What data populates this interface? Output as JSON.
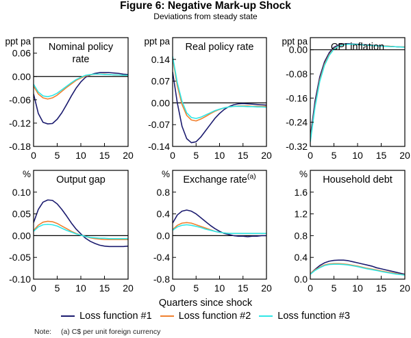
{
  "figure": {
    "title": "Figure 6: Negative Mark-up Shock",
    "subtitle": "Deviations from steady state",
    "xlabel": "Quarters since shock",
    "note_label": "Note:",
    "note_text": "(a) C$ per unit foreign currency"
  },
  "legend": [
    {
      "name": "Loss function #1",
      "color": "#1a1a6e"
    },
    {
      "name": "Loss function #2",
      "color": "#f07f2d"
    },
    {
      "name": "Loss function #3",
      "color": "#2ee6e6"
    }
  ],
  "chart_data": [
    {
      "type": "line",
      "title": "Nominal policy rate",
      "title_lines": [
        "Nominal policy",
        "rate"
      ],
      "unit": "ppt pa",
      "xlabel": "Quarters since shock",
      "xlim": [
        0,
        20
      ],
      "ylim": [
        -0.18,
        0.1
      ],
      "xticks": [
        0,
        5,
        10,
        15,
        20
      ],
      "yticks": [
        -0.18,
        -0.12,
        -0.06,
        0.0,
        0.06
      ],
      "ytick_labels": [
        "-0.18",
        "-0.12",
        "-0.06",
        "0.00",
        "0.06"
      ],
      "x": [
        0,
        1,
        2,
        3,
        4,
        5,
        6,
        7,
        8,
        9,
        10,
        11,
        12,
        13,
        14,
        15,
        16,
        17,
        18,
        19,
        20
      ],
      "series": [
        {
          "name": "Loss function #1",
          "values": [
            -0.045,
            -0.095,
            -0.118,
            -0.122,
            -0.121,
            -0.11,
            -0.093,
            -0.072,
            -0.05,
            -0.03,
            -0.014,
            -0.002,
            0.004,
            0.008,
            0.01,
            0.01,
            0.01,
            0.009,
            0.008,
            0.006,
            0.005
          ]
        },
        {
          "name": "Loss function #2",
          "values": [
            -0.025,
            -0.045,
            -0.055,
            -0.058,
            -0.055,
            -0.048,
            -0.038,
            -0.028,
            -0.019,
            -0.01,
            -0.004,
            0.001,
            0.004,
            0.006,
            0.006,
            0.006,
            0.005,
            0.004,
            0.004,
            0.003,
            0.003
          ]
        },
        {
          "name": "Loss function #3",
          "values": [
            -0.02,
            -0.04,
            -0.05,
            -0.052,
            -0.049,
            -0.043,
            -0.034,
            -0.025,
            -0.016,
            -0.008,
            -0.002,
            0.003,
            0.005,
            0.006,
            0.006,
            0.005,
            0.005,
            0.004,
            0.004,
            0.003,
            0.003
          ]
        }
      ]
    },
    {
      "type": "line",
      "title": "Real policy rate",
      "title_lines": [
        "Real policy rate"
      ],
      "unit": "ppt pa",
      "xlabel": "Quarters since shock",
      "xlim": [
        0,
        20
      ],
      "ylim": [
        -0.14,
        0.21
      ],
      "xticks": [
        0,
        5,
        10,
        15,
        20
      ],
      "yticks": [
        -0.14,
        -0.07,
        0.0,
        0.07,
        0.14
      ],
      "ytick_labels": [
        "-0.14",
        "-0.07",
        "0.00",
        "0.07",
        "0.14"
      ],
      "x": [
        0,
        1,
        2,
        3,
        4,
        5,
        6,
        7,
        8,
        9,
        10,
        11,
        12,
        13,
        14,
        15,
        16,
        17,
        18,
        19,
        20
      ],
      "series": [
        {
          "name": "Loss function #1",
          "values": [
            0.1,
            0.0,
            -0.075,
            -0.115,
            -0.128,
            -0.125,
            -0.11,
            -0.09,
            -0.07,
            -0.05,
            -0.034,
            -0.021,
            -0.012,
            -0.006,
            -0.003,
            -0.002,
            -0.003,
            -0.004,
            -0.005,
            -0.006,
            -0.007
          ]
        },
        {
          "name": "Loss function #2",
          "values": [
            0.145,
            0.055,
            -0.005,
            -0.04,
            -0.055,
            -0.058,
            -0.052,
            -0.044,
            -0.035,
            -0.027,
            -0.021,
            -0.016,
            -0.013,
            -0.011,
            -0.01,
            -0.01,
            -0.01,
            -0.011,
            -0.011,
            -0.011,
            -0.011
          ]
        },
        {
          "name": "Loss function #3",
          "values": [
            0.15,
            0.065,
            0.005,
            -0.032,
            -0.047,
            -0.05,
            -0.046,
            -0.039,
            -0.032,
            -0.025,
            -0.02,
            -0.016,
            -0.013,
            -0.011,
            -0.011,
            -0.011,
            -0.012,
            -0.012,
            -0.013,
            -0.013,
            -0.014
          ]
        }
      ]
    },
    {
      "type": "line",
      "title": "CPI inflation",
      "title_lines": [
        "CPI inflation"
      ],
      "unit": "ppt pa",
      "xlabel": "Quarters since shock",
      "xlim": [
        0,
        20
      ],
      "ylim": [
        -0.32,
        0.04
      ],
      "xticks": [
        0,
        5,
        10,
        15,
        20
      ],
      "yticks": [
        -0.32,
        -0.24,
        -0.16,
        -0.08,
        0.0
      ],
      "ytick_labels": [
        "-0.32",
        "-0.24",
        "-0.16",
        "-0.08",
        "0.00"
      ],
      "x": [
        0,
        1,
        2,
        3,
        4,
        5,
        6,
        7,
        8,
        9,
        10,
        11,
        12,
        13,
        14,
        15,
        16,
        17,
        18,
        19,
        20
      ],
      "series": [
        {
          "name": "Loss function #1",
          "values": [
            -0.29,
            -0.17,
            -0.09,
            -0.04,
            -0.01,
            0.008,
            0.016,
            0.019,
            0.02,
            0.019,
            0.018,
            0.017,
            0.016,
            0.015,
            0.014,
            0.013,
            0.012,
            0.011,
            0.01,
            0.009,
            0.009
          ]
        },
        {
          "name": "Loss function #2",
          "values": [
            -0.3,
            -0.185,
            -0.1,
            -0.048,
            -0.016,
            0.004,
            0.013,
            0.017,
            0.018,
            0.018,
            0.017,
            0.016,
            0.015,
            0.014,
            0.013,
            0.012,
            0.012,
            0.011,
            0.01,
            0.009,
            0.009
          ]
        },
        {
          "name": "Loss function #3",
          "values": [
            -0.305,
            -0.19,
            -0.105,
            -0.052,
            -0.019,
            0.002,
            0.012,
            0.016,
            0.018,
            0.018,
            0.017,
            0.016,
            0.015,
            0.014,
            0.013,
            0.012,
            0.011,
            0.01,
            0.01,
            0.009,
            0.008
          ]
        }
      ]
    },
    {
      "type": "line",
      "title": "Output gap",
      "title_lines": [
        "Output gap"
      ],
      "unit": "%",
      "xlabel": "Quarters since shock",
      "xlim": [
        0,
        20
      ],
      "ylim": [
        -0.1,
        0.15
      ],
      "xticks": [
        0,
        5,
        10,
        15,
        20
      ],
      "yticks": [
        -0.1,
        -0.05,
        0.0,
        0.05,
        0.1
      ],
      "ytick_labels": [
        "-0.10",
        "-0.05",
        "0.00",
        "0.05",
        "0.10"
      ],
      "x": [
        0,
        1,
        2,
        3,
        4,
        5,
        6,
        7,
        8,
        9,
        10,
        11,
        12,
        13,
        14,
        15,
        16,
        17,
        18,
        19,
        20
      ],
      "series": [
        {
          "name": "Loss function #1",
          "values": [
            0.03,
            0.06,
            0.077,
            0.082,
            0.081,
            0.073,
            0.06,
            0.045,
            0.029,
            0.015,
            0.004,
            -0.006,
            -0.013,
            -0.018,
            -0.022,
            -0.024,
            -0.025,
            -0.025,
            -0.025,
            -0.025,
            -0.024
          ]
        },
        {
          "name": "Loss function #2",
          "values": [
            0.012,
            0.024,
            0.031,
            0.033,
            0.032,
            0.028,
            0.022,
            0.016,
            0.01,
            0.005,
            0.001,
            -0.002,
            -0.005,
            -0.007,
            -0.008,
            -0.009,
            -0.009,
            -0.009,
            -0.009,
            -0.009,
            -0.009
          ]
        },
        {
          "name": "Loss function #3",
          "values": [
            0.01,
            0.02,
            0.025,
            0.026,
            0.025,
            0.022,
            0.017,
            0.012,
            0.008,
            0.004,
            0.001,
            -0.002,
            -0.004,
            -0.005,
            -0.006,
            -0.006,
            -0.007,
            -0.007,
            -0.007,
            -0.007,
            -0.007
          ]
        }
      ]
    },
    {
      "type": "line",
      "title": "Exchange rate",
      "title_superscript": "(a)",
      "title_lines": [
        "Exchange rate"
      ],
      "unit": "%",
      "xlabel": "Quarters since shock",
      "xlim": [
        0,
        20
      ],
      "ylim": [
        -0.8,
        1.2
      ],
      "xticks": [
        0,
        5,
        10,
        15,
        20
      ],
      "yticks": [
        -0.8,
        -0.4,
        0.0,
        0.4,
        0.8
      ],
      "ytick_labels": [
        "-0.8",
        "-0.4",
        "0.0",
        "0.4",
        "0.8"
      ],
      "x": [
        0,
        1,
        2,
        3,
        4,
        5,
        6,
        7,
        8,
        9,
        10,
        11,
        12,
        13,
        14,
        15,
        16,
        17,
        18,
        19,
        20
      ],
      "series": [
        {
          "name": "Loss function #1",
          "values": [
            0.23,
            0.38,
            0.45,
            0.47,
            0.45,
            0.4,
            0.33,
            0.26,
            0.19,
            0.13,
            0.08,
            0.04,
            0.02,
            0.0,
            -0.01,
            -0.01,
            -0.02,
            -0.01,
            -0.01,
            0.0,
            0.0
          ]
        },
        {
          "name": "Loss function #2",
          "values": [
            0.11,
            0.19,
            0.23,
            0.24,
            0.23,
            0.2,
            0.17,
            0.14,
            0.11,
            0.08,
            0.06,
            0.05,
            0.04,
            0.04,
            0.04,
            0.04,
            0.04,
            0.04,
            0.04,
            0.04,
            0.04
          ]
        },
        {
          "name": "Loss function #3",
          "values": [
            0.1,
            0.16,
            0.19,
            0.2,
            0.19,
            0.17,
            0.15,
            0.12,
            0.1,
            0.08,
            0.06,
            0.05,
            0.04,
            0.04,
            0.04,
            0.04,
            0.04,
            0.04,
            0.04,
            0.04,
            0.04
          ]
        }
      ]
    },
    {
      "type": "line",
      "title": "Household debt",
      "title_lines": [
        "Household debt"
      ],
      "unit": "%",
      "xlabel": "Quarters since shock",
      "xlim": [
        0,
        20
      ],
      "ylim": [
        0.0,
        2.0
      ],
      "xticks": [
        0,
        5,
        10,
        15,
        20
      ],
      "yticks": [
        0.0,
        0.4,
        0.8,
        1.2,
        1.6
      ],
      "ytick_labels": [
        "0.0",
        "0.4",
        "0.8",
        "1.2",
        "1.6"
      ],
      "x": [
        0,
        1,
        2,
        3,
        4,
        5,
        6,
        7,
        8,
        9,
        10,
        11,
        12,
        13,
        14,
        15,
        16,
        17,
        18,
        19,
        20
      ],
      "series": [
        {
          "name": "Loss function #1",
          "values": [
            0.1,
            0.18,
            0.25,
            0.3,
            0.33,
            0.345,
            0.35,
            0.35,
            0.34,
            0.32,
            0.3,
            0.28,
            0.26,
            0.24,
            0.21,
            0.19,
            0.17,
            0.15,
            0.13,
            0.11,
            0.09
          ]
        },
        {
          "name": "Loss function #2",
          "values": [
            0.1,
            0.17,
            0.22,
            0.26,
            0.28,
            0.285,
            0.285,
            0.28,
            0.27,
            0.255,
            0.24,
            0.22,
            0.2,
            0.185,
            0.17,
            0.15,
            0.135,
            0.12,
            0.105,
            0.09,
            0.08
          ]
        },
        {
          "name": "Loss function #3",
          "values": [
            0.09,
            0.16,
            0.21,
            0.25,
            0.27,
            0.275,
            0.275,
            0.27,
            0.26,
            0.245,
            0.23,
            0.21,
            0.19,
            0.175,
            0.16,
            0.14,
            0.125,
            0.11,
            0.095,
            0.085,
            0.075
          ]
        }
      ]
    }
  ]
}
